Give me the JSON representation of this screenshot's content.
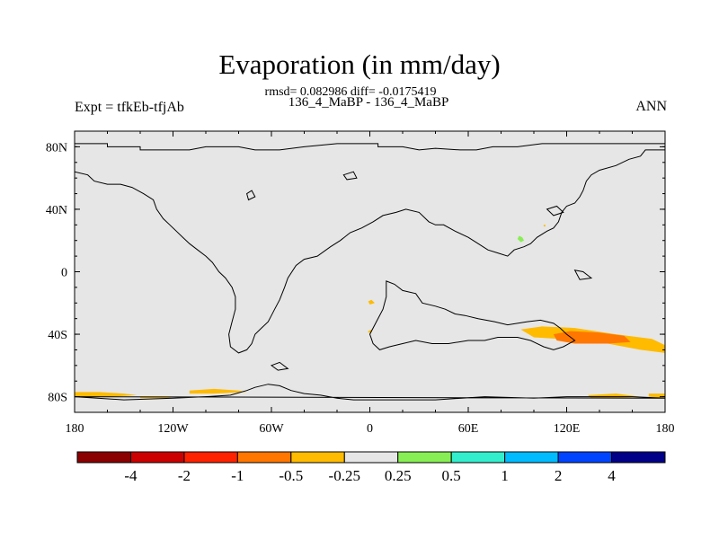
{
  "title": "Evaporation (in mm/day)",
  "stats_line": "rmsd= 0.082986 diff= -0.0175419",
  "case_line": "136_4_MaBP - 136_4_MaBP",
  "expt_label": "Expt = tfkEb-tfjAb",
  "season_label": "ANN",
  "map": {
    "lon_range": [
      -180,
      180
    ],
    "lat_range": [
      -90,
      90
    ],
    "background_color": "#e6e6e6",
    "lat_ticks": [
      {
        "value": 80,
        "label": "80N"
      },
      {
        "value": 40,
        "label": "40N"
      },
      {
        "value": 0,
        "label": "0"
      },
      {
        "value": -40,
        "label": "40S"
      },
      {
        "value": -80,
        "label": "80S"
      }
    ],
    "lon_ticks": [
      {
        "value": -180,
        "label": "180"
      },
      {
        "value": -120,
        "label": "120W"
      },
      {
        "value": -60,
        "label": "60W"
      },
      {
        "value": 0,
        "label": "0"
      },
      {
        "value": 60,
        "label": "60E"
      },
      {
        "value": 120,
        "label": "120E"
      },
      {
        "value": 180,
        "label": "180"
      }
    ]
  },
  "colorbar": {
    "colors": [
      "#8b0000",
      "#cc0000",
      "#ff2200",
      "#ff7700",
      "#ffbb00",
      "#e6e6e6",
      "#88ee55",
      "#33eecc",
      "#00bbff",
      "#0044ff",
      "#000088"
    ],
    "labels": [
      "-4",
      "-2",
      "-1",
      "-0.5",
      "-0.25",
      "0.25",
      "0.5",
      "1",
      "2",
      "4"
    ]
  },
  "anomalies": [
    {
      "name": "southern-ocean-east",
      "level": -0.25,
      "color": "#ffbb00",
      "points": [
        [
          92,
          -37
        ],
        [
          105,
          -35
        ],
        [
          125,
          -36
        ],
        [
          150,
          -40
        ],
        [
          172,
          -43
        ],
        [
          180,
          -47
        ],
        [
          180,
          -52
        ],
        [
          165,
          -50
        ],
        [
          140,
          -45
        ],
        [
          115,
          -43
        ],
        [
          100,
          -42
        ]
      ]
    },
    {
      "name": "southern-ocean-core",
      "level": -0.5,
      "color": "#ff7700",
      "points": [
        [
          112,
          -40
        ],
        [
          122,
          -38
        ],
        [
          140,
          -39
        ],
        [
          155,
          -41
        ],
        [
          159,
          -45
        ],
        [
          145,
          -46
        ],
        [
          125,
          -46
        ],
        [
          114,
          -44
        ]
      ]
    },
    {
      "name": "antarctic-coast-west-1",
      "level": -0.25,
      "color": "#ffbb00",
      "points": [
        [
          -180,
          -77
        ],
        [
          -165,
          -77
        ],
        [
          -150,
          -78
        ],
        [
          -142,
          -79
        ],
        [
          -158,
          -80
        ],
        [
          -180,
          -80
        ]
      ]
    },
    {
      "name": "antarctic-coast-west-2",
      "level": -0.25,
      "color": "#ffbb00",
      "points": [
        [
          -140,
          -80
        ],
        [
          -125,
          -80
        ],
        [
          -120,
          -81
        ],
        [
          -140,
          -81
        ]
      ]
    },
    {
      "name": "antarctic-coast-west-3",
      "level": -0.25,
      "color": "#ffbb00",
      "points": [
        [
          -110,
          -76
        ],
        [
          -95,
          -75
        ],
        [
          -80,
          -76
        ],
        [
          -75,
          -77
        ],
        [
          -95,
          -78
        ],
        [
          -110,
          -78
        ]
      ]
    },
    {
      "name": "antarctic-coast-east",
      "level": -0.25,
      "color": "#ffbb00",
      "points": [
        [
          133,
          -79
        ],
        [
          150,
          -78
        ],
        [
          165,
          -80
        ],
        [
          150,
          -81
        ],
        [
          135,
          -81
        ]
      ]
    },
    {
      "name": "antarctic-coast-far-east",
      "level": -0.25,
      "color": "#ffbb00",
      "points": [
        [
          170,
          -78
        ],
        [
          180,
          -78
        ],
        [
          180,
          -81
        ],
        [
          170,
          -80
        ]
      ]
    },
    {
      "name": "equatorial-blob-1",
      "level": -0.25,
      "color": "#ffbb00",
      "points": [
        [
          -1,
          -19
        ],
        [
          1,
          -18
        ],
        [
          3,
          -20
        ],
        [
          0,
          -21
        ]
      ]
    },
    {
      "name": "equatorial-blob-2",
      "level": -0.25,
      "color": "#ffbb00",
      "points": [
        [
          -1,
          -38
        ],
        [
          1,
          -37
        ],
        [
          1,
          -39
        ],
        [
          -1,
          -39
        ]
      ]
    },
    {
      "name": "asia-positive",
      "level": 0.25,
      "color": "#88ee55",
      "points": [
        [
          91,
          23
        ],
        [
          93,
          22
        ],
        [
          94,
          20
        ],
        [
          92,
          19
        ],
        [
          90,
          21
        ]
      ]
    },
    {
      "name": "asia-small",
      "level": -0.25,
      "color": "#ffbb00",
      "points": [
        [
          106,
          30
        ],
        [
          107,
          30
        ],
        [
          107,
          29
        ],
        [
          106,
          29
        ]
      ]
    }
  ],
  "coastlines": [
    {
      "name": "main-continent",
      "points": [
        [
          -180,
          82
        ],
        [
          -160,
          82
        ],
        [
          -160,
          80
        ],
        [
          -140,
          80
        ],
        [
          -140,
          78
        ],
        [
          -130,
          78
        ],
        [
          -120,
          78
        ],
        [
          -110,
          78
        ],
        [
          -100,
          80
        ],
        [
          -90,
          80
        ],
        [
          -80,
          80
        ],
        [
          -70,
          78
        ],
        [
          -55,
          78
        ],
        [
          -40,
          80
        ],
        [
          -20,
          82
        ],
        [
          5,
          82
        ],
        [
          5,
          80
        ],
        [
          20,
          80
        ],
        [
          30,
          78
        ],
        [
          40,
          79
        ],
        [
          55,
          78
        ],
        [
          65,
          78
        ],
        [
          75,
          80
        ],
        [
          90,
          80
        ],
        [
          105,
          82
        ],
        [
          120,
          82
        ],
        [
          140,
          82
        ],
        [
          160,
          82
        ],
        [
          180,
          82
        ],
        [
          180,
          78
        ],
        [
          168,
          78
        ],
        [
          165,
          74
        ],
        [
          158,
          72
        ],
        [
          150,
          68
        ],
        [
          140,
          65
        ],
        [
          135,
          62
        ],
        [
          132,
          58
        ],
        [
          130,
          52
        ],
        [
          128,
          48
        ],
        [
          125,
          44
        ],
        [
          120,
          42
        ],
        [
          117,
          38
        ],
        [
          115,
          32
        ],
        [
          112,
          28
        ],
        [
          108,
          26
        ],
        [
          102,
          22
        ],
        [
          98,
          18
        ],
        [
          94,
          16
        ],
        [
          88,
          14
        ],
        [
          84,
          10
        ],
        [
          78,
          12
        ],
        [
          72,
          14
        ],
        [
          66,
          18
        ],
        [
          60,
          22
        ],
        [
          52,
          26
        ],
        [
          45,
          30
        ],
        [
          40,
          30
        ],
        [
          36,
          32
        ],
        [
          30,
          38
        ],
        [
          22,
          40
        ],
        [
          16,
          38
        ],
        [
          8,
          36
        ],
        [
          2,
          32
        ],
        [
          -5,
          28
        ],
        [
          -12,
          25
        ],
        [
          -18,
          20
        ],
        [
          -24,
          16
        ],
        [
          -32,
          10
        ],
        [
          -40,
          8
        ],
        [
          -45,
          4
        ],
        [
          -50,
          -4
        ],
        [
          -52,
          -10
        ],
        [
          -55,
          -18
        ],
        [
          -58,
          -24
        ],
        [
          -60,
          -28
        ],
        [
          -62,
          -32
        ],
        [
          -66,
          -36
        ],
        [
          -70,
          -40
        ],
        [
          -72,
          -46
        ],
        [
          -75,
          -50
        ],
        [
          -80,
          -52
        ],
        [
          -85,
          -48
        ],
        [
          -86,
          -40
        ],
        [
          -84,
          -32
        ],
        [
          -82,
          -24
        ],
        [
          -82,
          -16
        ],
        [
          -84,
          -10
        ],
        [
          -88,
          -4
        ],
        [
          -92,
          0
        ],
        [
          -96,
          6
        ],
        [
          -100,
          10
        ],
        [
          -105,
          14
        ],
        [
          -110,
          18
        ],
        [
          -114,
          22
        ],
        [
          -118,
          26
        ],
        [
          -122,
          30
        ],
        [
          -126,
          34
        ],
        [
          -130,
          40
        ],
        [
          -132,
          46
        ],
        [
          -138,
          50
        ],
        [
          -145,
          54
        ],
        [
          -152,
          56
        ],
        [
          -160,
          56
        ],
        [
          -168,
          58
        ],
        [
          -172,
          62
        ],
        [
          -180,
          64
        ]
      ]
    },
    {
      "name": "africa-south-and-australia",
      "points": [
        [
          10,
          -6
        ],
        [
          15,
          -8
        ],
        [
          20,
          -12
        ],
        [
          28,
          -14
        ],
        [
          32,
          -20
        ],
        [
          40,
          -22
        ],
        [
          46,
          -24
        ],
        [
          52,
          -27
        ],
        [
          58,
          -28
        ],
        [
          66,
          -30
        ],
        [
          76,
          -32
        ],
        [
          84,
          -34
        ],
        [
          96,
          -32
        ],
        [
          104,
          -31
        ],
        [
          112,
          -33
        ],
        [
          116,
          -36
        ],
        [
          120,
          -40
        ],
        [
          125,
          -44
        ],
        [
          118,
          -48
        ],
        [
          112,
          -50
        ],
        [
          106,
          -48
        ],
        [
          98,
          -44
        ],
        [
          90,
          -42
        ],
        [
          78,
          -42
        ],
        [
          70,
          -44
        ],
        [
          60,
          -44
        ],
        [
          48,
          -46
        ],
        [
          38,
          -46
        ],
        [
          28,
          -44
        ],
        [
          20,
          -46
        ],
        [
          12,
          -48
        ],
        [
          6,
          -50
        ],
        [
          2,
          -46
        ],
        [
          0,
          -40
        ],
        [
          4,
          -32
        ],
        [
          8,
          -24
        ],
        [
          10,
          -16
        ]
      ]
    },
    {
      "name": "antarctic-coast",
      "points": [
        [
          -180,
          -80
        ],
        [
          -150,
          -82
        ],
        [
          -120,
          -81
        ],
        [
          -100,
          -80
        ],
        [
          -85,
          -79
        ],
        [
          -75,
          -76
        ],
        [
          -70,
          -74
        ],
        [
          -62,
          -72
        ],
        [
          -55,
          -73
        ],
        [
          -48,
          -76
        ],
        [
          -40,
          -78
        ],
        [
          -30,
          -79
        ],
        [
          -20,
          -81
        ],
        [
          -10,
          -82
        ],
        [
          10,
          -82
        ],
        [
          40,
          -82
        ],
        [
          70,
          -80
        ],
        [
          100,
          -81
        ],
        [
          120,
          -80
        ],
        [
          140,
          -80
        ],
        [
          160,
          -80
        ],
        [
          180,
          -81
        ]
      ]
    },
    {
      "name": "small-island-1",
      "points": [
        [
          -60,
          -60
        ],
        [
          -55,
          -58
        ],
        [
          -50,
          -62
        ],
        [
          -56,
          -63
        ]
      ]
    },
    {
      "name": "small-island-2",
      "points": [
        [
          -16,
          62
        ],
        [
          -10,
          64
        ],
        [
          -8,
          60
        ],
        [
          -14,
          59
        ]
      ]
    },
    {
      "name": "small-island-3",
      "points": [
        [
          125,
          1
        ],
        [
          130,
          0
        ],
        [
          135,
          -4
        ],
        [
          128,
          -5
        ]
      ]
    },
    {
      "name": "small-island-4",
      "points": [
        [
          108,
          40
        ],
        [
          114,
          42
        ],
        [
          118,
          38
        ],
        [
          112,
          36
        ]
      ]
    },
    {
      "name": "small-island-5",
      "points": [
        [
          -75,
          50
        ],
        [
          -72,
          52
        ],
        [
          -70,
          48
        ],
        [
          -74,
          46
        ]
      ]
    }
  ]
}
